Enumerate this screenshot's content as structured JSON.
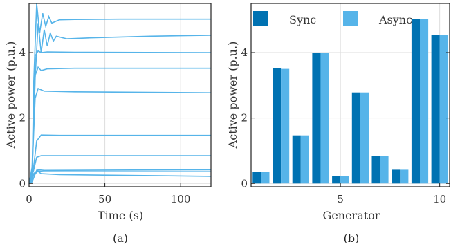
{
  "captions": [
    "(a)",
    "(b)"
  ],
  "colors": {
    "line": "#56B4E9",
    "sync": "#0072B2",
    "async": "#56B4E9"
  },
  "chart_data": [
    {
      "type": "line",
      "xlabel": "Time (s)",
      "ylabel": "Active power (p.u.)",
      "xlim": [
        0,
        120
      ],
      "ylim": [
        -0.1,
        5.5
      ],
      "xticks": [
        0,
        50,
        100
      ],
      "yticks": [
        0,
        2,
        4
      ],
      "grid": true,
      "series": [
        {
          "values": [
            [
              0,
              0
            ],
            [
              2,
              0.1
            ],
            [
              3,
              3.0
            ],
            [
              5,
              5.5
            ],
            [
              7,
              4.6
            ],
            [
              9,
              5.2
            ],
            [
              11,
              4.8
            ],
            [
              13,
              5.1
            ],
            [
              15,
              4.9
            ],
            [
              20,
              5.0
            ],
            [
              30,
              5.01
            ],
            [
              60,
              5.02
            ],
            [
              120,
              5.02
            ]
          ]
        },
        {
          "values": [
            [
              0,
              0
            ],
            [
              2,
              0.2
            ],
            [
              4,
              3.2
            ],
            [
              6,
              4.9
            ],
            [
              8,
              4.0
            ],
            [
              10,
              4.7
            ],
            [
              12,
              4.2
            ],
            [
              14,
              4.6
            ],
            [
              16,
              4.35
            ],
            [
              18,
              4.5
            ],
            [
              25,
              4.42
            ],
            [
              40,
              4.45
            ],
            [
              80,
              4.5
            ],
            [
              120,
              4.53
            ]
          ]
        },
        {
          "values": [
            [
              0,
              0
            ],
            [
              2,
              0.5
            ],
            [
              4,
              3.9
            ],
            [
              6,
              4.05
            ],
            [
              8,
              4.0
            ],
            [
              12,
              4.02
            ],
            [
              30,
              4.01
            ],
            [
              120,
              4.0
            ]
          ]
        },
        {
          "values": [
            [
              0,
              0
            ],
            [
              2,
              0.3
            ],
            [
              4,
              3.3
            ],
            [
              6,
              3.55
            ],
            [
              8,
              3.45
            ],
            [
              12,
              3.5
            ],
            [
              30,
              3.52
            ],
            [
              120,
              3.52
            ]
          ]
        },
        {
          "values": [
            [
              0,
              0
            ],
            [
              2,
              0.4
            ],
            [
              4,
              2.6
            ],
            [
              6,
              2.9
            ],
            [
              10,
              2.82
            ],
            [
              30,
              2.8
            ],
            [
              120,
              2.77
            ]
          ]
        },
        {
          "values": [
            [
              0,
              0
            ],
            [
              3,
              0.5
            ],
            [
              5,
              1.3
            ],
            [
              8,
              1.48
            ],
            [
              20,
              1.47
            ],
            [
              120,
              1.47
            ]
          ]
        },
        {
          "values": [
            [
              0,
              0
            ],
            [
              3,
              0.4
            ],
            [
              5,
              0.8
            ],
            [
              8,
              0.85
            ],
            [
              120,
              0.85
            ]
          ]
        },
        {
          "values": [
            [
              0,
              0
            ],
            [
              3,
              0.3
            ],
            [
              6,
              0.42
            ],
            [
              10,
              0.4
            ],
            [
              120,
              0.42
            ]
          ]
        },
        {
          "values": [
            [
              0,
              0
            ],
            [
              3,
              0.25
            ],
            [
              6,
              0.38
            ],
            [
              10,
              0.36
            ],
            [
              120,
              0.36
            ]
          ]
        },
        {
          "values": [
            [
              0,
              0
            ],
            [
              2,
              0.05
            ],
            [
              5,
              0.4
            ],
            [
              8,
              0.3
            ],
            [
              20,
              0.27
            ],
            [
              120,
              0.22
            ]
          ]
        }
      ]
    },
    {
      "type": "bar",
      "xlabel": "Generator",
      "ylabel": "Active power (p.u.)",
      "categories": [
        1,
        2,
        3,
        4,
        5,
        6,
        7,
        8,
        9,
        10
      ],
      "ylim": [
        -0.1,
        5.5
      ],
      "xticks": [
        5,
        10
      ],
      "yticks": [
        0,
        2,
        4
      ],
      "legend_position": "top",
      "series": [
        {
          "name": "Sync",
          "values": [
            0.35,
            3.52,
            1.47,
            4.0,
            0.22,
            2.78,
            0.85,
            0.42,
            5.02,
            4.53
          ]
        },
        {
          "name": "Async",
          "values": [
            0.35,
            3.5,
            1.47,
            4.0,
            0.22,
            2.78,
            0.85,
            0.42,
            5.02,
            4.53
          ]
        }
      ]
    }
  ]
}
